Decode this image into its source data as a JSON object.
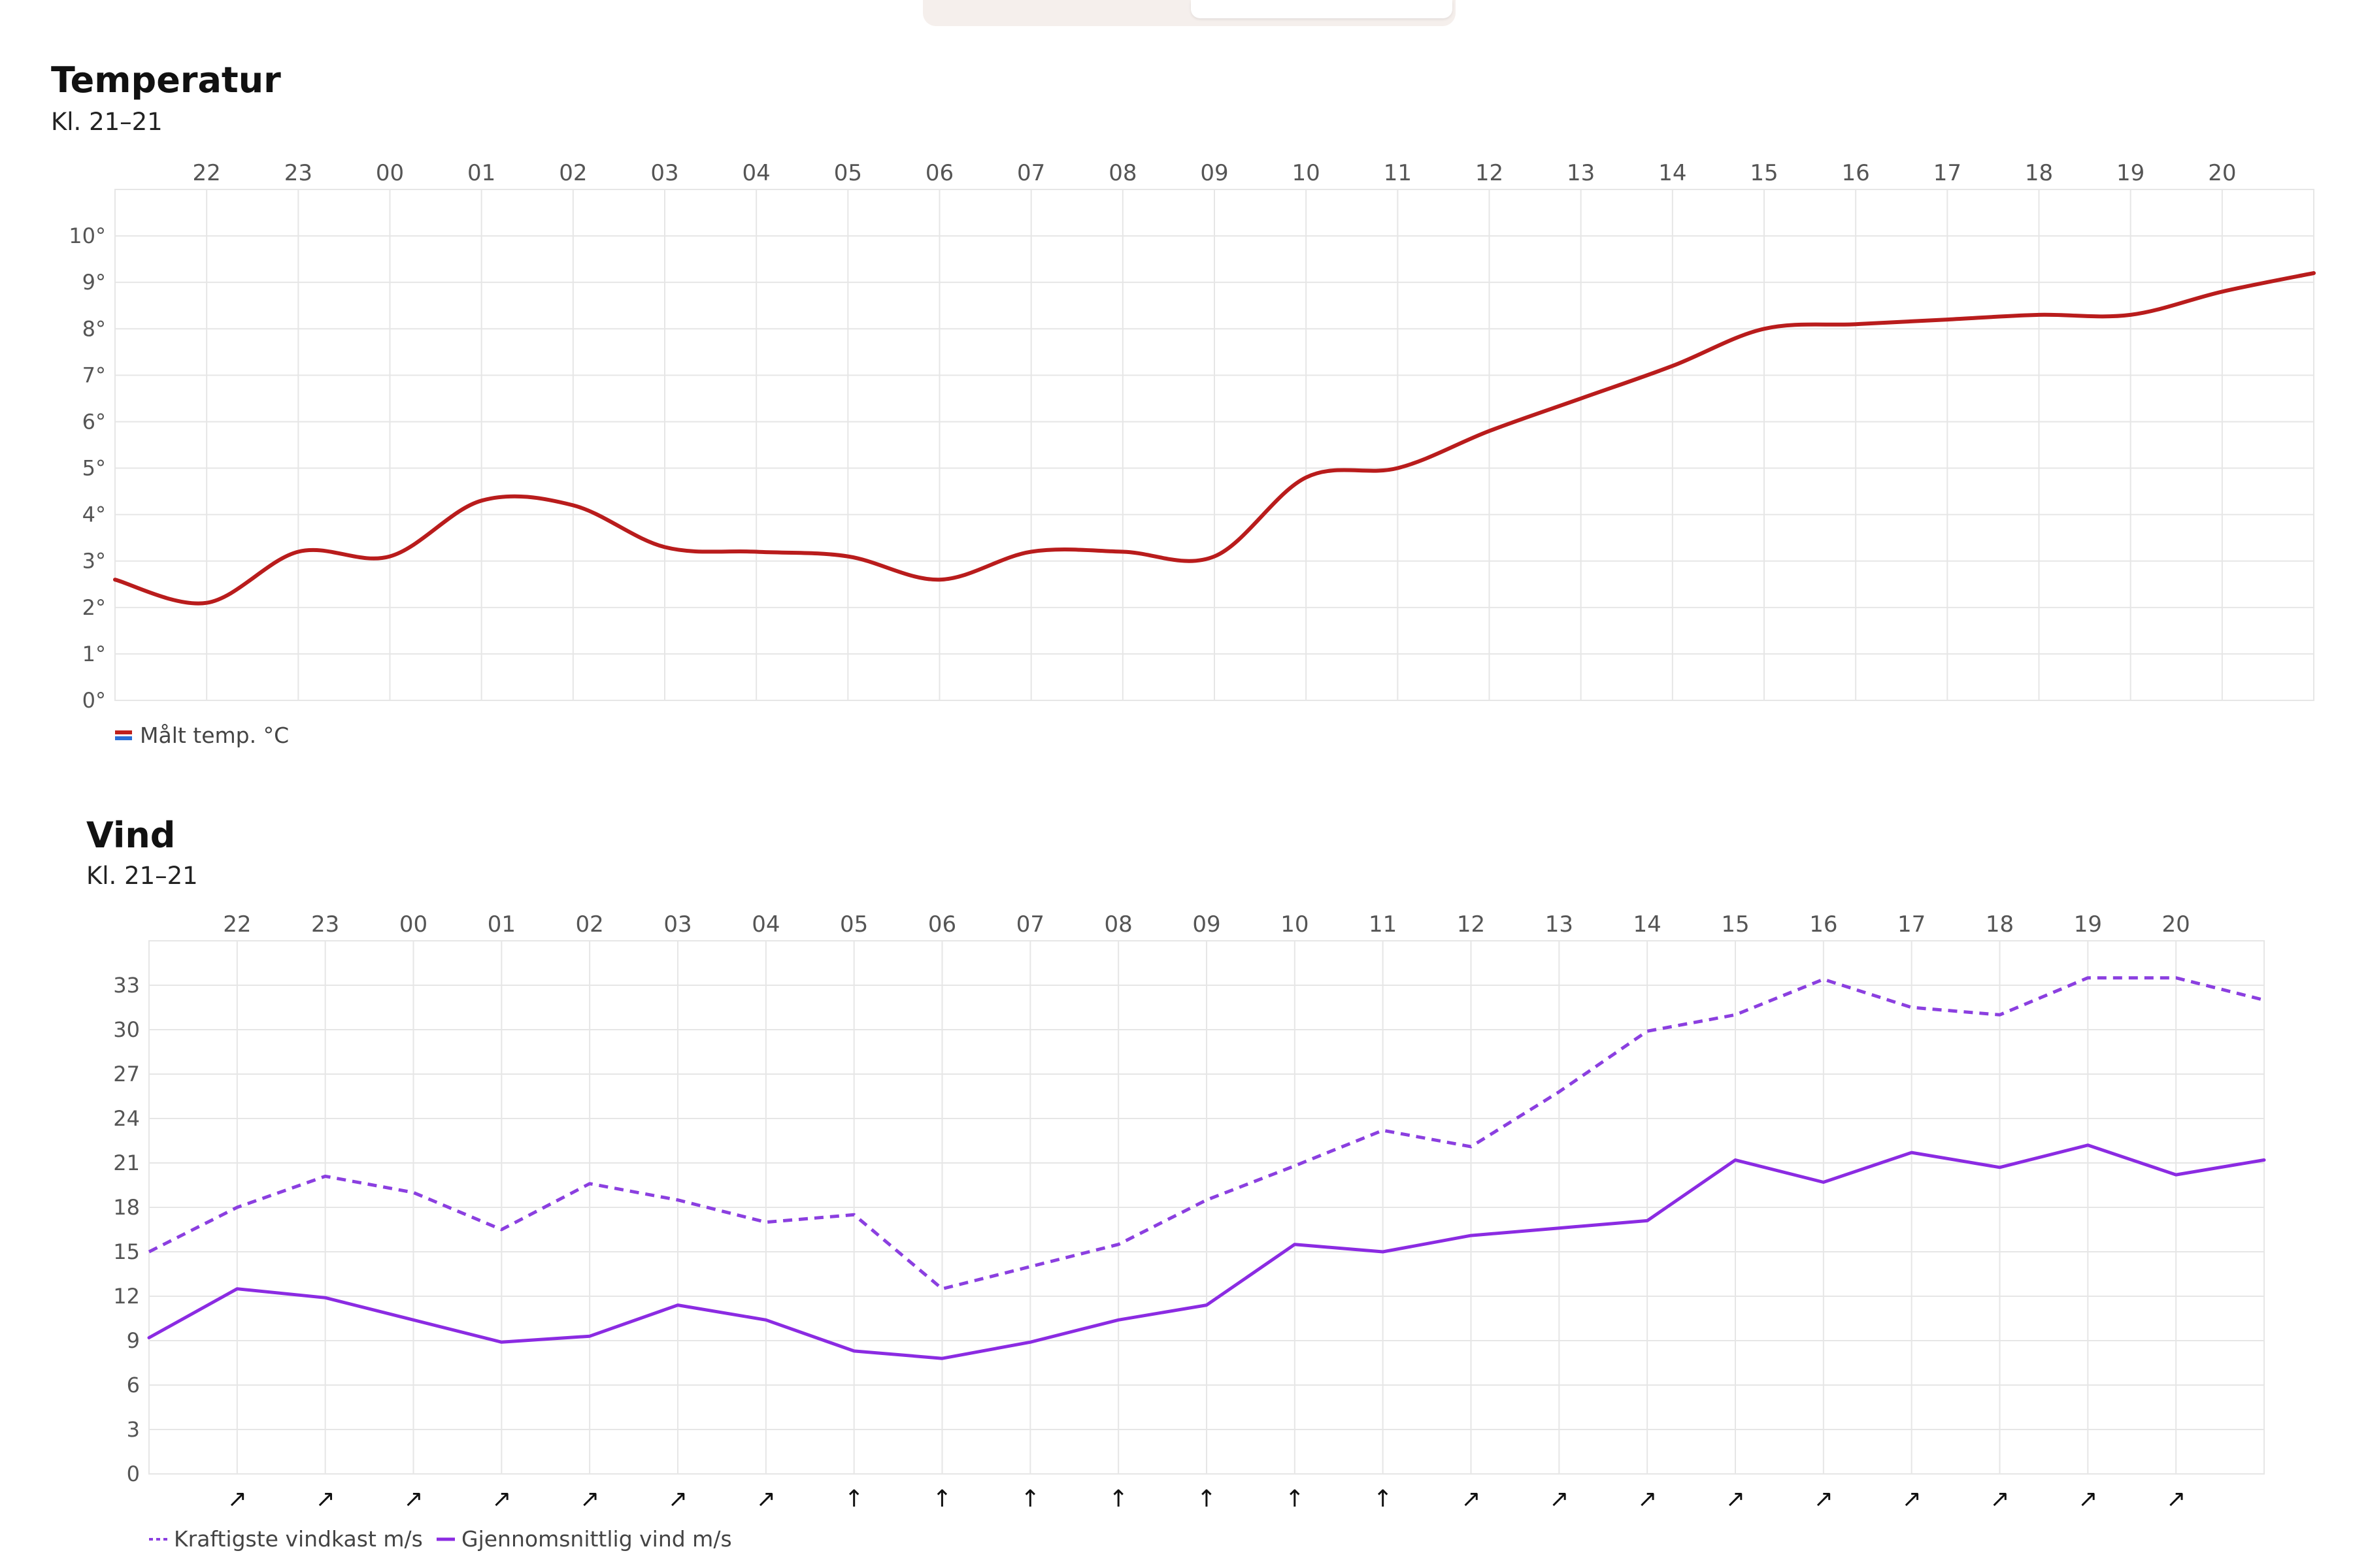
{
  "temperature": {
    "title": "Temperatur",
    "subtitle": "Kl. 21–21",
    "legend": "Målt temp. °C",
    "legend_colors": [
      "#c0201c",
      "#2a6fd6"
    ],
    "chart_data": {
      "type": "line",
      "title": "Temperatur",
      "subtitle": "Kl. 21–21",
      "x": [
        21,
        22,
        23,
        0,
        1,
        2,
        3,
        4,
        5,
        6,
        7,
        8,
        9,
        10,
        11,
        12,
        13,
        14,
        15,
        16,
        17,
        18,
        19,
        20,
        21
      ],
      "xtick_labels": [
        "22",
        "23",
        "00",
        "01",
        "02",
        "03",
        "04",
        "05",
        "06",
        "07",
        "08",
        "09",
        "10",
        "11",
        "12",
        "13",
        "14",
        "15",
        "16",
        "17",
        "18",
        "19",
        "20"
      ],
      "ytick_labels": [
        "0°",
        "1°",
        "2°",
        "3°",
        "4°",
        "5°",
        "6°",
        "7°",
        "8°",
        "9°",
        "10°"
      ],
      "ylim": [
        0,
        11
      ],
      "grid": true,
      "series": [
        {
          "name": "Målt temp. °C",
          "color": "#b91c1c",
          "smooth": true,
          "values": [
            2.6,
            2.1,
            3.2,
            3.1,
            4.3,
            4.2,
            3.3,
            3.2,
            3.1,
            2.6,
            3.2,
            3.2,
            3.1,
            4.8,
            5.0,
            5.8,
            6.5,
            7.2,
            8.0,
            8.1,
            8.2,
            8.3,
            8.3,
            8.8,
            9.2
          ]
        }
      ]
    }
  },
  "wind": {
    "title": "Vind",
    "subtitle": "Kl. 21–21",
    "legend_gust": "Kraftigste vindkast m/s",
    "legend_mean": "Gjennomsnittlig vind m/s",
    "chart_data": {
      "type": "line",
      "title": "Vind",
      "subtitle": "Kl. 21–21",
      "x": [
        21,
        22,
        23,
        0,
        1,
        2,
        3,
        4,
        5,
        6,
        7,
        8,
        9,
        10,
        11,
        12,
        13,
        14,
        15,
        16,
        17,
        18,
        19,
        20,
        21
      ],
      "xtick_labels": [
        "22",
        "23",
        "00",
        "01",
        "02",
        "03",
        "04",
        "05",
        "06",
        "07",
        "08",
        "09",
        "10",
        "11",
        "12",
        "13",
        "14",
        "15",
        "16",
        "17",
        "18",
        "19",
        "20"
      ],
      "ytick_labels": [
        "0",
        "3",
        "6",
        "9",
        "12",
        "15",
        "18",
        "21",
        "24",
        "27",
        "30",
        "33"
      ],
      "ylim": [
        0,
        36
      ],
      "grid": true,
      "series": [
        {
          "name": "Kraftigste vindkast m/s",
          "color": "#8b3fe0",
          "dashed": true,
          "values": [
            15,
            18,
            20.1,
            19,
            16.5,
            19.6,
            18.5,
            17,
            17.5,
            12.5,
            14,
            15.5,
            18.5,
            20.8,
            23.2,
            22.1,
            25.8,
            29.9,
            31,
            33.4,
            31.5,
            31,
            33.5,
            33.5,
            32
          ]
        },
        {
          "name": "Gjennomsnittlig vind m/s",
          "color": "#8b2be2",
          "dashed": false,
          "values": [
            9.2,
            12.5,
            11.9,
            10.4,
            8.9,
            9.3,
            11.4,
            10.4,
            8.3,
            7.8,
            8.9,
            10.4,
            11.4,
            15.5,
            15,
            16.1,
            16.6,
            17.1,
            21.2,
            19.7,
            21.7,
            20.7,
            22.2,
            20.2,
            21.2
          ]
        }
      ],
      "wind_direction_arrows": [
        "↗",
        "↗",
        "↗",
        "↗",
        "↗",
        "↗",
        "↗",
        "↑",
        "↑",
        "↑",
        "↑",
        "↑",
        "↑",
        "↑",
        "↗",
        "↗",
        "↗",
        "↗",
        "↗",
        "↗",
        "↗",
        "↗",
        "↗"
      ]
    }
  }
}
